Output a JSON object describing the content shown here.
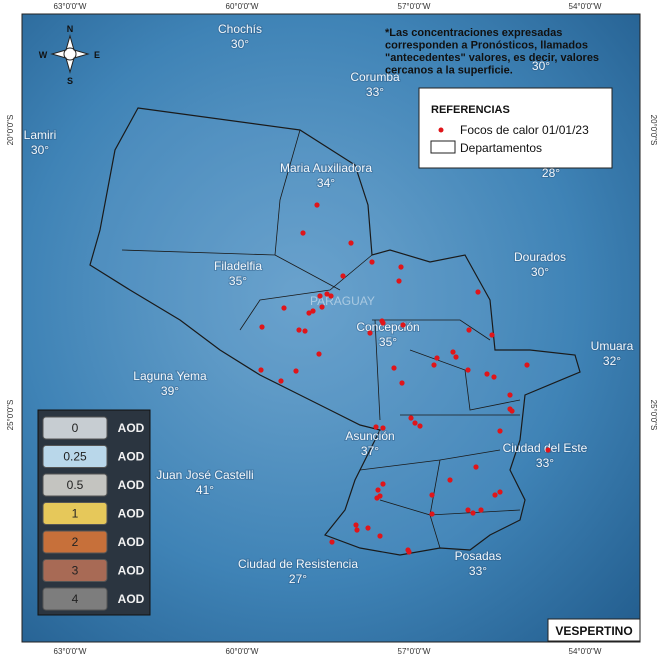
{
  "grid_labels": {
    "lon": [
      "63°0'0\"W",
      "60°0'0\"W",
      "57°0'0\"W",
      "54°0'0\"W"
    ],
    "lat": [
      "20°0'0\"S",
      "25°0'0\"S"
    ]
  },
  "compass": {
    "north": "N",
    "south": "S",
    "east": "E",
    "west": "W"
  },
  "note": [
    "*Las concentraciones expresadas",
    "corresponden a Pronósticos, llamados",
    "\"antecedentes\" valores, es decir, valores",
    "cercanos a la superficie."
  ],
  "country": "PARAGUAY",
  "cities": [
    {
      "name": "Chochís",
      "temp": "30°"
    },
    {
      "name": "Corumba",
      "temp": "33°"
    },
    {
      "name": "Lamiri",
      "temp": "30°"
    },
    {
      "name": "Maria Auxiliadora",
      "temp": "34°"
    },
    {
      "name": "Filadelfia",
      "temp": "35°"
    },
    {
      "name": "Concepción",
      "temp": "35°"
    },
    {
      "name": "Dourados",
      "temp": "30°"
    },
    {
      "name": "Umuara",
      "temp": "32°"
    },
    {
      "name": "Laguna Yema",
      "temp": "39°"
    },
    {
      "name": "Asunción",
      "temp": "37°"
    },
    {
      "name": "Ciudad del Este",
      "temp": "33°"
    },
    {
      "name": "Juan José Castelli",
      "temp": "41°"
    },
    {
      "name": "Ciudad de Resistencia",
      "temp": "27°"
    },
    {
      "name": "Posadas",
      "temp": "33°"
    }
  ],
  "extra_temps": [
    "30°",
    "28°"
  ],
  "legend": {
    "title": "REFERENCIAS",
    "items": [
      "Focos de calor 01/01/23",
      "Departamentos"
    ]
  },
  "aod_scale": {
    "levels": [
      "0",
      "0.25",
      "0.5",
      "1",
      "2",
      "3",
      "4"
    ],
    "unit": "AOD"
  },
  "period": "VESPERTINO"
}
